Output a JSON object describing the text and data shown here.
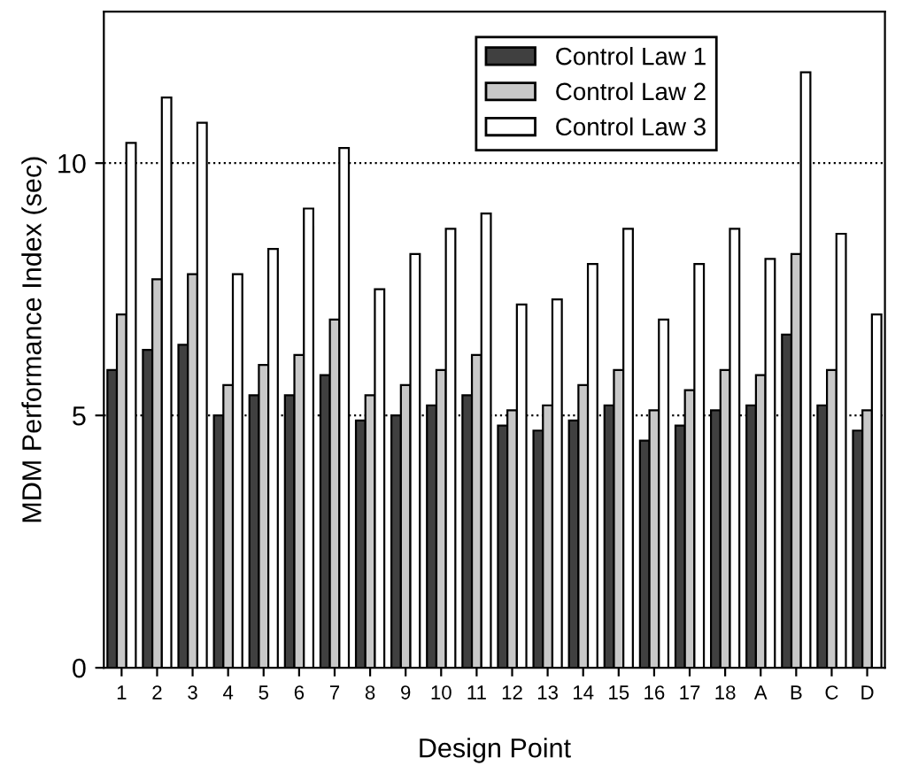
{
  "chart_data": {
    "type": "bar",
    "xlabel": "Design Point",
    "ylabel": "MDM Performance Index (sec)",
    "categories": [
      "1",
      "2",
      "3",
      "4",
      "5",
      "6",
      "7",
      "8",
      "9",
      "10",
      "11",
      "12",
      "13",
      "14",
      "15",
      "16",
      "17",
      "18",
      "A",
      "B",
      "C",
      "D"
    ],
    "series": [
      {
        "name": "Control Law 1",
        "color": "#404040",
        "values": [
          5.9,
          6.3,
          6.4,
          5.0,
          5.4,
          5.4,
          5.8,
          4.9,
          5.0,
          5.2,
          5.4,
          4.8,
          4.7,
          4.9,
          5.2,
          4.5,
          4.8,
          5.1,
          5.2,
          6.6,
          5.2,
          4.7
        ]
      },
      {
        "name": "Control Law 2",
        "color": "#c8c8c8",
        "values": [
          7.0,
          7.7,
          7.8,
          5.6,
          6.0,
          6.2,
          6.9,
          5.4,
          5.6,
          5.9,
          6.2,
          5.1,
          5.2,
          5.6,
          5.9,
          5.1,
          5.5,
          5.9,
          5.8,
          8.2,
          5.9,
          5.1
        ]
      },
      {
        "name": "Control Law 3",
        "color": "#ffffff",
        "values": [
          10.4,
          11.3,
          10.8,
          7.8,
          8.3,
          9.1,
          10.3,
          7.5,
          8.2,
          8.7,
          9.0,
          7.2,
          7.3,
          8.0,
          8.7,
          6.9,
          8.0,
          8.7,
          8.1,
          11.8,
          8.6,
          7.0
        ]
      }
    ],
    "ylim": [
      0,
      13
    ],
    "yticks": [
      0,
      5,
      10
    ],
    "grid": "y",
    "legend": "top right"
  }
}
